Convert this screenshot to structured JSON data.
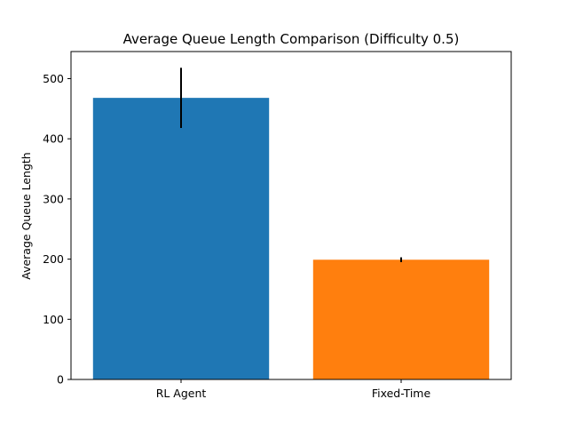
{
  "chart_data": {
    "type": "bar",
    "title": "Average Queue Length Comparison (Difficulty 0.5)",
    "xlabel": "",
    "ylabel": "Average Queue Length",
    "categories": [
      "RL Agent",
      "Fixed-Time"
    ],
    "values": [
      468,
      199
    ],
    "errors": [
      50,
      4
    ],
    "ylim": [
      0,
      545
    ],
    "yticks": [
      0,
      100,
      200,
      300,
      400,
      500
    ],
    "grid": false,
    "colors": [
      "#1f77b4",
      "#ff7f0e"
    ],
    "error_color": "#000000"
  }
}
